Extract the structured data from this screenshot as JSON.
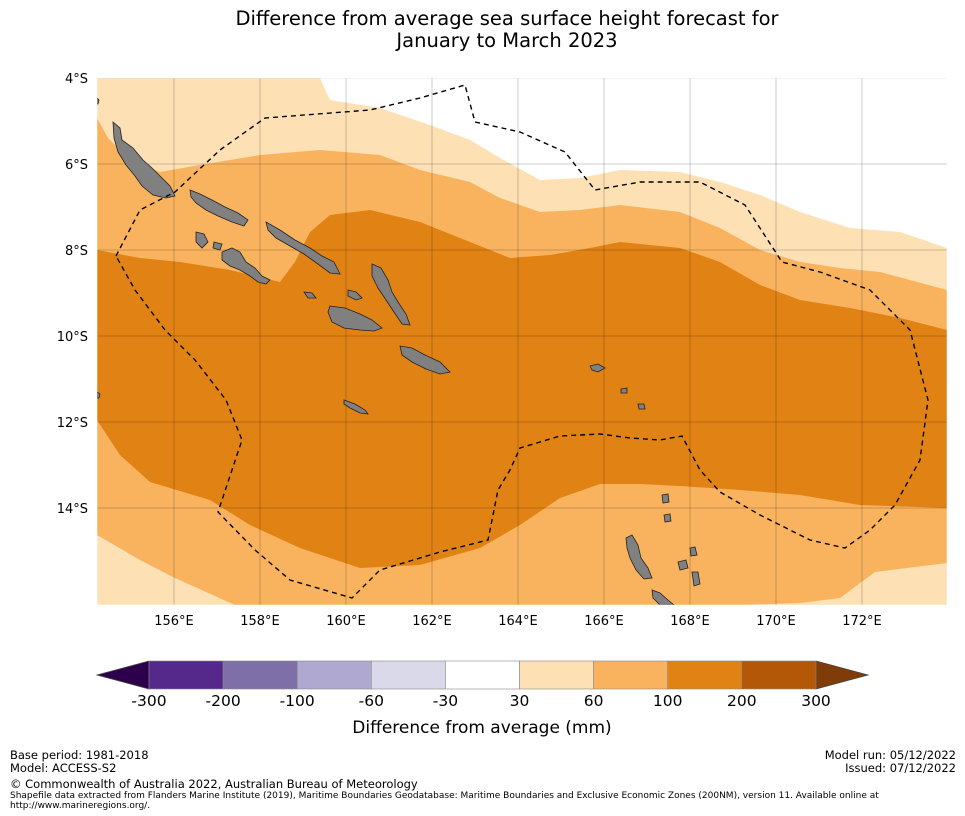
{
  "title": {
    "line1": "Difference from average sea surface height forecast for",
    "line2": "January to March 2023"
  },
  "chart_data": {
    "type": "map",
    "lat_range": [
      -16,
      -4
    ],
    "lon_range": [
      154.2,
      174
    ],
    "lat_ticks": [
      "4°S",
      "6°S",
      "8°S",
      "10°S",
      "12°S",
      "14°S"
    ],
    "lon_ticks": [
      "156°E",
      "158°E",
      "160°E",
      "162°E",
      "164°E",
      "166°E",
      "168°E",
      "170°E",
      "172°E"
    ],
    "colorbar": {
      "title": "Difference from average (mm)",
      "boundaries": [
        "-300",
        "-200",
        "-100",
        "-60",
        "-30",
        "30",
        "60",
        "100",
        "200",
        "300"
      ],
      "colors": [
        "#55288c",
        "#7f6fa9",
        "#afa8d0",
        "#d9d9ea",
        "#ffffff",
        "#fde0b4",
        "#f9b35e",
        "#e08214",
        "#b35806"
      ],
      "extend_low_color": "#2d004b",
      "extend_high_color": "#7f3b08"
    },
    "land_color": "#808080"
  },
  "footer": {
    "base_period": "Base period: 1981-2018",
    "model": "Model: ACCESS-S2",
    "copyright": "© Commonwealth of Australia 2022, Australian Bureau of Meteorology",
    "shapefile_line1": "Shapefile data extracted from Flanders Marine Institute (2019), Maritime Boundaries Geodatabase: Maritime Boundaries and Exclusive Economic Zones (200NM), version 11. Available online at",
    "shapefile_line2": "http://www.marineregions.org/.",
    "model_run": "Model run: 05/12/2022",
    "issued": "Issued: 07/12/2022"
  }
}
